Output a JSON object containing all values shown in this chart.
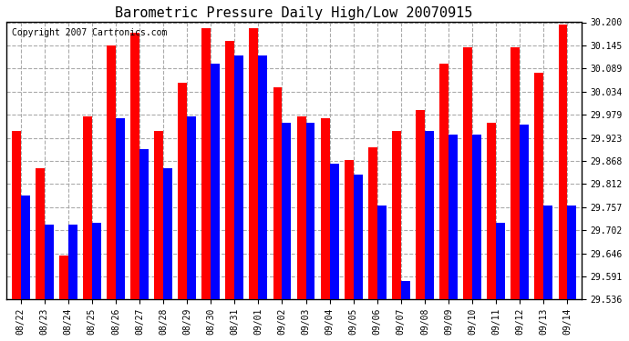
{
  "title": "Barometric Pressure Daily High/Low 20070915",
  "copyright": "Copyright 2007 Cartronics.com",
  "categories": [
    "08/22",
    "08/23",
    "08/24",
    "08/25",
    "08/26",
    "08/27",
    "08/28",
    "08/29",
    "08/30",
    "08/31",
    "09/01",
    "09/02",
    "09/03",
    "09/04",
    "09/05",
    "09/06",
    "09/07",
    "09/08",
    "09/09",
    "09/10",
    "09/11",
    "09/12",
    "09/13",
    "09/14"
  ],
  "highs": [
    29.94,
    29.85,
    29.64,
    29.975,
    30.145,
    30.175,
    29.94,
    30.055,
    30.185,
    30.155,
    30.185,
    30.045,
    29.975,
    29.97,
    29.87,
    29.9,
    29.94,
    29.99,
    30.1,
    30.14,
    29.96,
    30.14,
    30.08,
    30.195
  ],
  "lows": [
    29.785,
    29.715,
    29.715,
    29.72,
    29.97,
    29.895,
    29.85,
    29.975,
    30.1,
    30.12,
    30.12,
    29.96,
    29.96,
    29.86,
    29.835,
    29.76,
    29.58,
    29.94,
    29.93,
    29.93,
    29.72,
    29.955,
    29.76,
    29.76
  ],
  "ymin": 29.536,
  "ymax": 30.2,
  "yticks": [
    29.536,
    29.591,
    29.646,
    29.702,
    29.757,
    29.812,
    29.868,
    29.923,
    29.979,
    30.034,
    30.089,
    30.145,
    30.2
  ],
  "high_color": "#ff0000",
  "low_color": "#0000ff",
  "bg_color": "#ffffff",
  "plot_bg_color": "#ffffff",
  "grid_color": "#aaaaaa",
  "title_fontsize": 11,
  "copyright_fontsize": 7
}
